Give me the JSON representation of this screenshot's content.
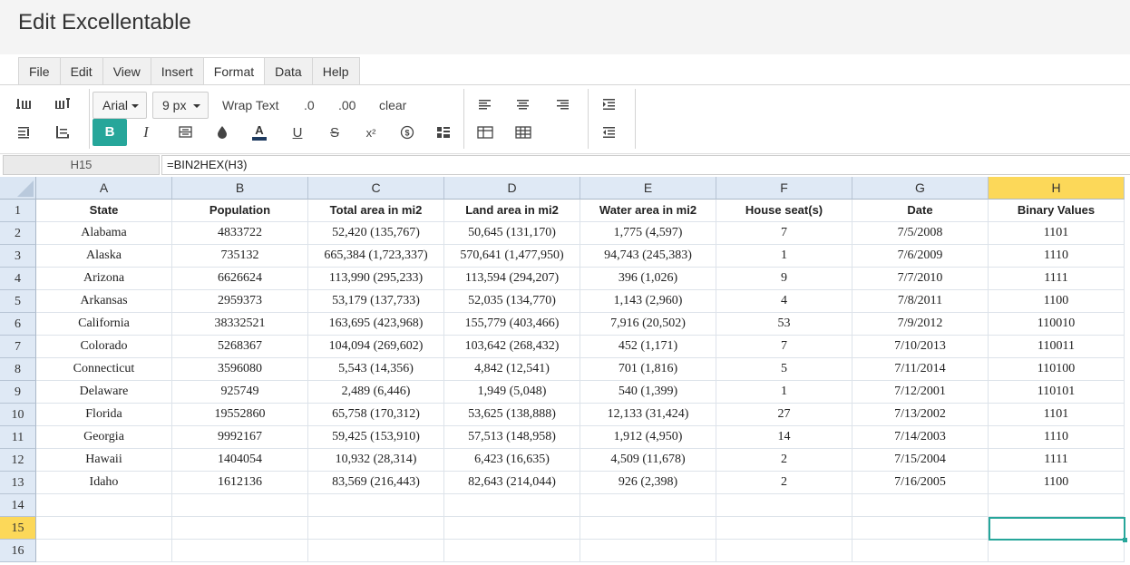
{
  "app": {
    "title": "Edit Excellentable"
  },
  "menu": [
    "File",
    "Edit",
    "View",
    "Insert",
    "Format",
    "Data",
    "Help"
  ],
  "menu_active": "Format",
  "toolbar": {
    "font_family": "Arial",
    "font_size": "9 px",
    "wrap_text": "Wrap Text",
    "decimal_decrease": ".0",
    "decimal_increase": ".00",
    "clear": "clear",
    "bold": "B",
    "italic": "I",
    "underline": "U",
    "strike": "S",
    "superscript": "x²",
    "currency": "$",
    "accent_color": "#26a69a"
  },
  "formula_bar": {
    "cell_ref": "H15",
    "formula": "=BIN2HEX(H3)"
  },
  "columns": [
    "A",
    "B",
    "C",
    "D",
    "E",
    "F",
    "G",
    "H"
  ],
  "selected_column": "H",
  "row_numbers": [
    "1",
    "2",
    "3",
    "4",
    "5",
    "6",
    "7",
    "8",
    "9",
    "10",
    "11",
    "12",
    "13",
    "14",
    "15",
    "16"
  ],
  "selected_row": "15",
  "rows": [
    [
      "State",
      "Population",
      "Total area in mi2",
      "Land area in mi2",
      "Water area in mi2",
      "House seat(s)",
      "Date",
      "Binary Values"
    ],
    [
      "Alabama",
      "4833722",
      "52,420 (135,767)",
      "50,645 (131,170)",
      "1,775 (4,597)",
      "7",
      "7/5/2008",
      "1101"
    ],
    [
      "Alaska",
      "735132",
      "665,384 (1,723,337)",
      "570,641 (1,477,950)",
      "94,743 (245,383)",
      "1",
      "7/6/2009",
      "1110"
    ],
    [
      "Arizona",
      "6626624",
      "113,990 (295,233)",
      "113,594 (294,207)",
      "396 (1,026)",
      "9",
      "7/7/2010",
      "1111"
    ],
    [
      "Arkansas",
      "2959373",
      "53,179 (137,733)",
      "52,035 (134,770)",
      "1,143 (2,960)",
      "4",
      "7/8/2011",
      "1100"
    ],
    [
      "California",
      "38332521",
      "163,695 (423,968)",
      "155,779 (403,466)",
      "7,916 (20,502)",
      "53",
      "7/9/2012",
      "110010"
    ],
    [
      "Colorado",
      "5268367",
      "104,094 (269,602)",
      "103,642 (268,432)",
      "452 (1,171)",
      "7",
      "7/10/2013",
      "110011"
    ],
    [
      "Connecticut",
      "3596080",
      "5,543 (14,356)",
      "4,842 (12,541)",
      "701 (1,816)",
      "5",
      "7/11/2014",
      "110100"
    ],
    [
      "Delaware",
      "925749",
      "2,489 (6,446)",
      "1,949 (5,048)",
      "540 (1,399)",
      "1",
      "7/12/2001",
      "110101"
    ],
    [
      "Florida",
      "19552860",
      "65,758 (170,312)",
      "53,625 (138,888)",
      "12,133 (31,424)",
      "27",
      "7/13/2002",
      "1101"
    ],
    [
      "Georgia",
      "9992167",
      "59,425 (153,910)",
      "57,513 (148,958)",
      "1,912 (4,950)",
      "14",
      "7/14/2003",
      "1110"
    ],
    [
      "Hawaii",
      "1404054",
      "10,932 (28,314)",
      "6,423 (16,635)",
      "4,509 (11,678)",
      "2",
      "7/15/2004",
      "1111"
    ],
    [
      "Idaho",
      "1612136",
      "83,569 (216,443)",
      "82,643 (214,044)",
      "926 (2,398)",
      "2",
      "7/16/2005",
      "1100"
    ],
    [
      "",
      "",
      "",
      "",
      "",
      "",
      "",
      ""
    ],
    [
      "",
      "",
      "",
      "",
      "",
      "",
      "",
      ""
    ],
    [
      "",
      "",
      "",
      "",
      "",
      "",
      "",
      ""
    ]
  ]
}
